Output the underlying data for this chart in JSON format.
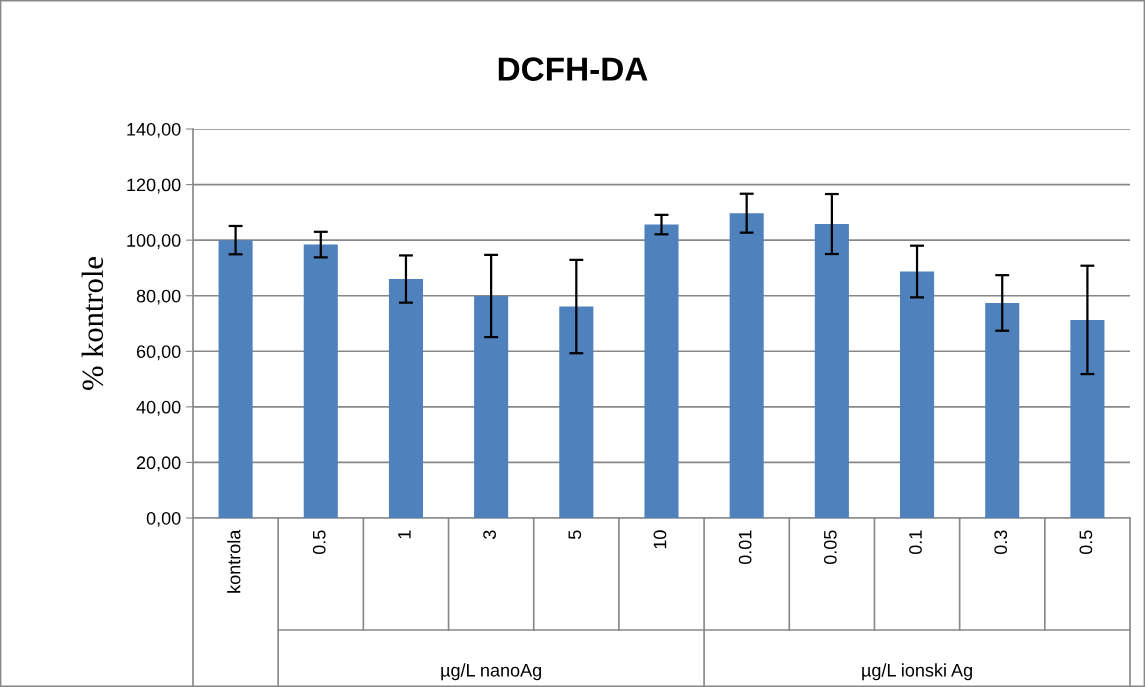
{
  "chart_data": {
    "type": "bar",
    "title": "DCFH-DA",
    "ylabel": "% kontrole",
    "categories": [
      "kontrola",
      "0.5",
      "1",
      "3",
      "5",
      "10",
      "0.01",
      "0.05",
      "0.1",
      "0.3",
      "0.5"
    ],
    "values": [
      100.0,
      98.4,
      86.0,
      79.9,
      76.1,
      105.6,
      109.7,
      105.8,
      88.7,
      77.4,
      71.3
    ],
    "errors": [
      5.1,
      4.6,
      8.5,
      14.8,
      16.8,
      3.5,
      7.0,
      10.8,
      9.3,
      10.0,
      19.5
    ],
    "color": "#4f81bd",
    "annotations": [
      "µg/L nanoAg",
      "µg/L ionski Ag"
    ],
    "ylim": [
      0,
      140
    ],
    "yticks": [
      {
        "value": 0,
        "label": "0,00"
      },
      {
        "value": 20,
        "label": "20,00"
      },
      {
        "value": 40,
        "label": "40,00"
      },
      {
        "value": 60,
        "label": "60,00"
      },
      {
        "value": 80,
        "label": "80,00"
      },
      {
        "value": 100,
        "label": "100,00"
      },
      {
        "value": 120,
        "label": "120,00"
      },
      {
        "value": 140,
        "label": "140,00"
      }
    ],
    "grid": "y"
  }
}
